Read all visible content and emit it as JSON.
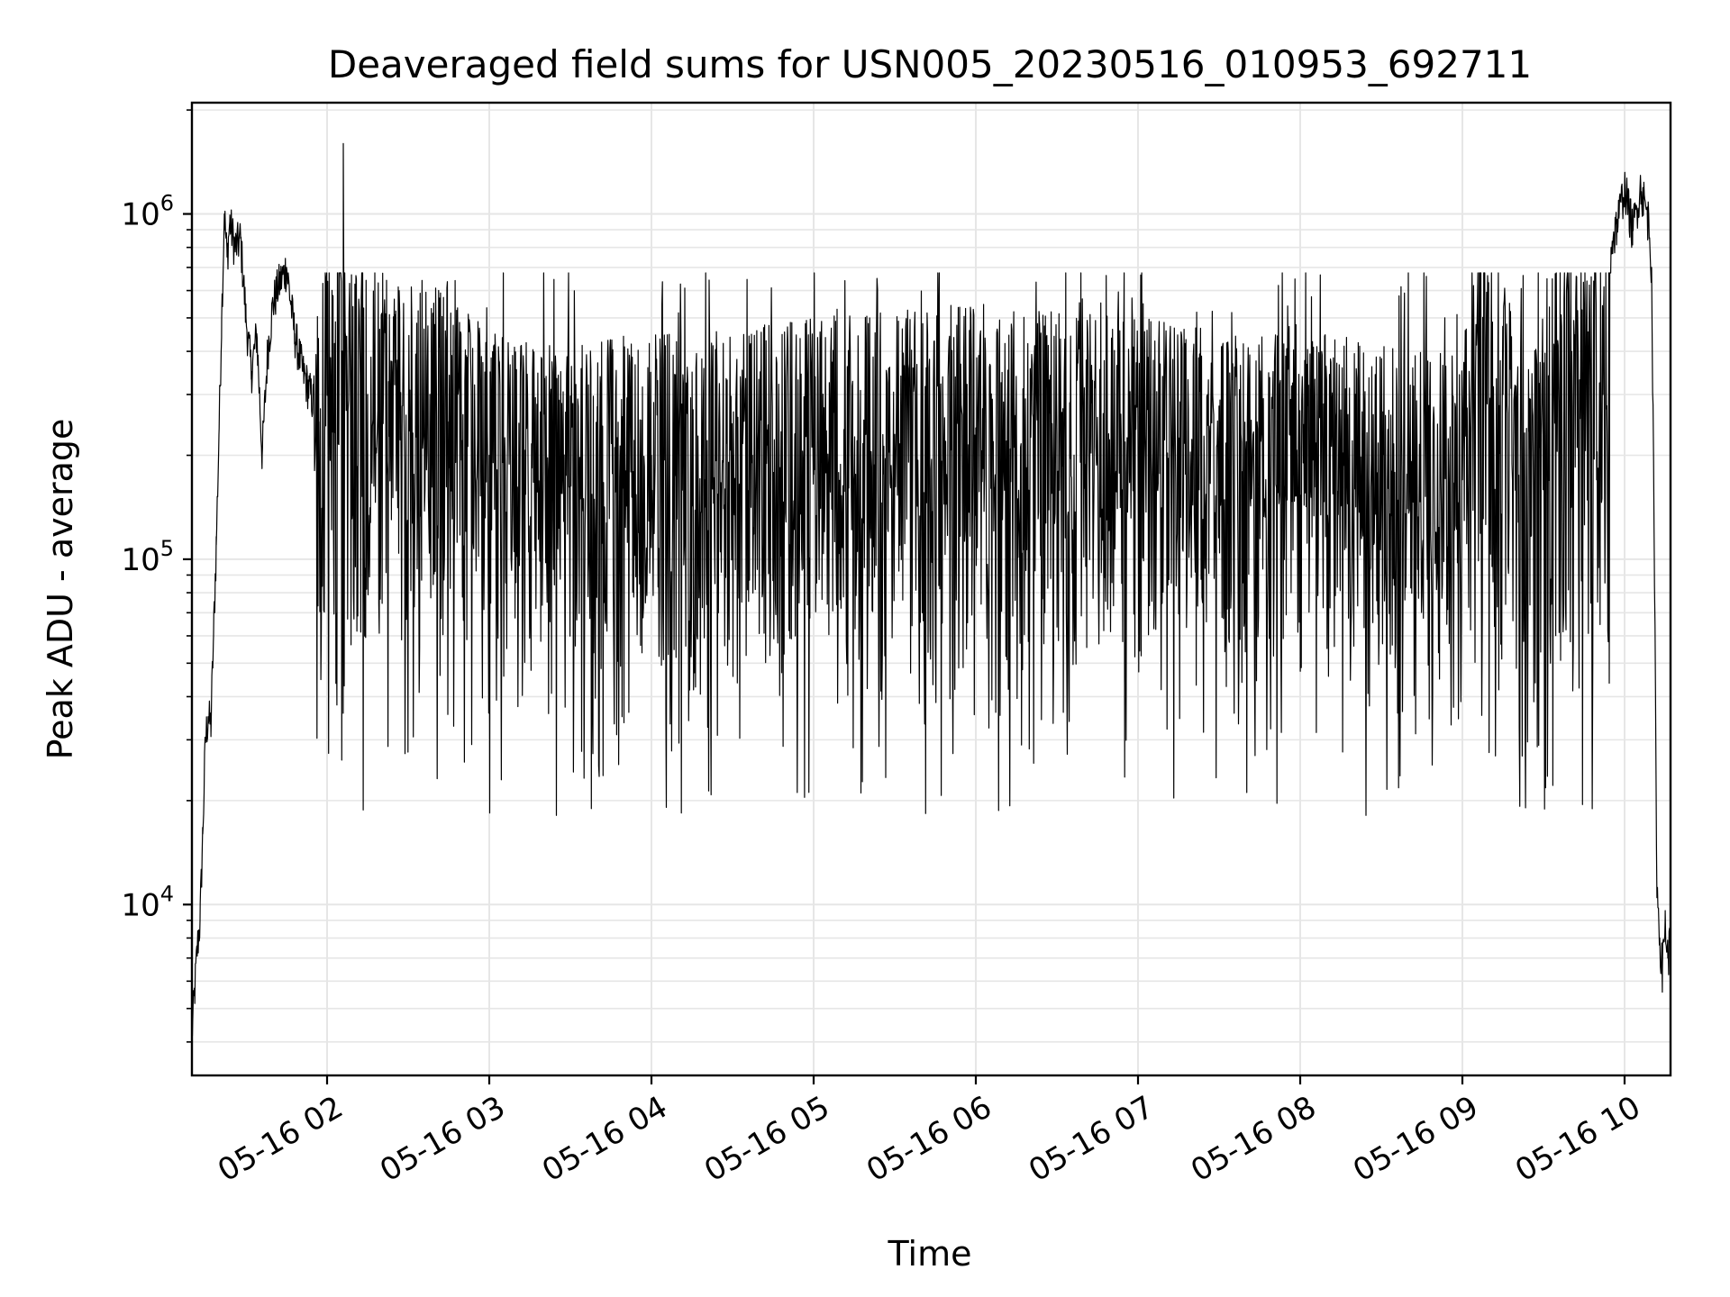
{
  "chart_data": {
    "type": "line",
    "title": "Deaveraged field sums for USN005_20230516_010953_692711",
    "xlabel": "Time",
    "ylabel": "Peak ADU - average",
    "yscale": "log",
    "ylim": [
      3200,
      2100000
    ],
    "xlim": [
      "2023-05-16 01:10",
      "2023-05-16 10:17"
    ],
    "grid": true,
    "line_color": "#000000",
    "grid_color": "#e6e6e6",
    "x_ticks": [
      {
        "value": "2023-05-16 02:00",
        "label": "05-16 02"
      },
      {
        "value": "2023-05-16 03:00",
        "label": "05-16 03"
      },
      {
        "value": "2023-05-16 04:00",
        "label": "05-16 04"
      },
      {
        "value": "2023-05-16 05:00",
        "label": "05-16 05"
      },
      {
        "value": "2023-05-16 06:00",
        "label": "05-16 06"
      },
      {
        "value": "2023-05-16 07:00",
        "label": "05-16 07"
      },
      {
        "value": "2023-05-16 08:00",
        "label": "05-16 08"
      },
      {
        "value": "2023-05-16 09:00",
        "label": "05-16 09"
      },
      {
        "value": "2023-05-16 10:00",
        "label": "05-16 10"
      }
    ],
    "y_ticks": [
      {
        "value": 10000,
        "base": "10",
        "exp": "4"
      },
      {
        "value": 100000,
        "base": "10",
        "exp": "5"
      },
      {
        "value": 1000000,
        "base": "10",
        "exp": "6"
      }
    ],
    "series": [
      {
        "points": [
          [
            "2023-05-16 01:10",
            4200
          ],
          [
            "2023-05-16 01:11",
            5600
          ],
          [
            "2023-05-16 01:12",
            7500
          ],
          [
            "2023-05-16 01:13",
            9000
          ],
          [
            "2023-05-16 01:14",
            16000
          ],
          [
            "2023-05-16 01:15",
            30000
          ],
          [
            "2023-05-16 01:16",
            35000
          ],
          [
            "2023-05-16 01:17",
            33000
          ],
          [
            "2023-05-16 01:18",
            60000
          ],
          [
            "2023-05-16 01:19",
            110000
          ],
          [
            "2023-05-16 01:20",
            230000
          ],
          [
            "2023-05-16 01:21",
            500000
          ],
          [
            "2023-05-16 01:22",
            1000000
          ],
          [
            "2023-05-16 01:23",
            750000
          ],
          [
            "2023-05-16 01:24",
            950000
          ],
          [
            "2023-05-16 01:26",
            800000
          ],
          [
            "2023-05-16 01:28",
            850000
          ],
          [
            "2023-05-16 01:30",
            500000
          ],
          [
            "2023-05-16 01:32",
            350000
          ],
          [
            "2023-05-16 01:34",
            450000
          ],
          [
            "2023-05-16 01:36",
            200000
          ],
          [
            "2023-05-16 01:38",
            400000
          ],
          [
            "2023-05-16 01:40",
            550000
          ],
          [
            "2023-05-16 01:42",
            620000
          ],
          [
            "2023-05-16 01:45",
            700000
          ],
          [
            "2023-05-16 01:48",
            450000
          ],
          [
            "2023-05-16 01:51",
            350000
          ],
          [
            "2023-05-16 01:54",
            300000
          ],
          [
            "2023-05-16 01:57",
            250000
          ],
          [
            "2023-05-16 02:00",
            380000
          ],
          [
            "2023-05-16 02:03",
            300000
          ],
          [
            "2023-05-16 02:06",
            1600000
          ],
          [
            "2023-05-16 02:08",
            320000
          ],
          [
            "2023-05-16 02:15",
            300000
          ],
          [
            "2023-05-16 02:25",
            320000
          ],
          [
            "2023-05-16 02:35",
            300000
          ],
          [
            "2023-05-16 02:45",
            250000
          ],
          [
            "2023-05-16 03:00",
            200000
          ],
          [
            "2023-05-16 03:20",
            180000
          ],
          [
            "2023-05-16 03:40",
            190000
          ],
          [
            "2023-05-16 04:00",
            200000
          ],
          [
            "2023-05-16 04:30",
            200000
          ],
          [
            "2023-05-16 05:00",
            220000
          ],
          [
            "2023-05-16 05:30",
            230000
          ],
          [
            "2023-05-16 06:00",
            240000
          ],
          [
            "2023-05-16 06:30",
            230000
          ],
          [
            "2023-05-16 07:00",
            220000
          ],
          [
            "2023-05-16 07:30",
            200000
          ],
          [
            "2023-05-16 08:00",
            210000
          ],
          [
            "2023-05-16 08:30",
            180000
          ],
          [
            "2023-05-16 09:00",
            170000
          ],
          [
            "2023-05-16 09:08",
            600000
          ],
          [
            "2023-05-16 09:15",
            300000
          ],
          [
            "2023-05-16 09:25",
            150000
          ],
          [
            "2023-05-16 09:35",
            350000
          ],
          [
            "2023-05-16 09:45",
            350000
          ],
          [
            "2023-05-16 09:52",
            300000
          ],
          [
            "2023-05-16 09:55",
            800000
          ],
          [
            "2023-05-16 09:58",
            1000000
          ],
          [
            "2023-05-16 10:00",
            1200000
          ],
          [
            "2023-05-16 10:03",
            900000
          ],
          [
            "2023-05-16 10:06",
            1200000
          ],
          [
            "2023-05-16 10:09",
            950000
          ],
          [
            "2023-05-16 10:10",
            700000
          ],
          [
            "2023-05-16 10:11",
            100000
          ],
          [
            "2023-05-16 10:12",
            11000
          ],
          [
            "2023-05-16 10:13",
            8000
          ],
          [
            "2023-05-16 10:14",
            6500
          ],
          [
            "2023-05-16 10:15",
            9000
          ],
          [
            "2023-05-16 10:16",
            7000
          ],
          [
            "2023-05-16 10:17",
            8000
          ]
        ],
        "noisy_band": {
          "from": "2023-05-16 01:55",
          "to": "2023-05-16 09:55",
          "typical_high": 450000,
          "typical_low": 30000,
          "min": 16000
        }
      }
    ]
  }
}
